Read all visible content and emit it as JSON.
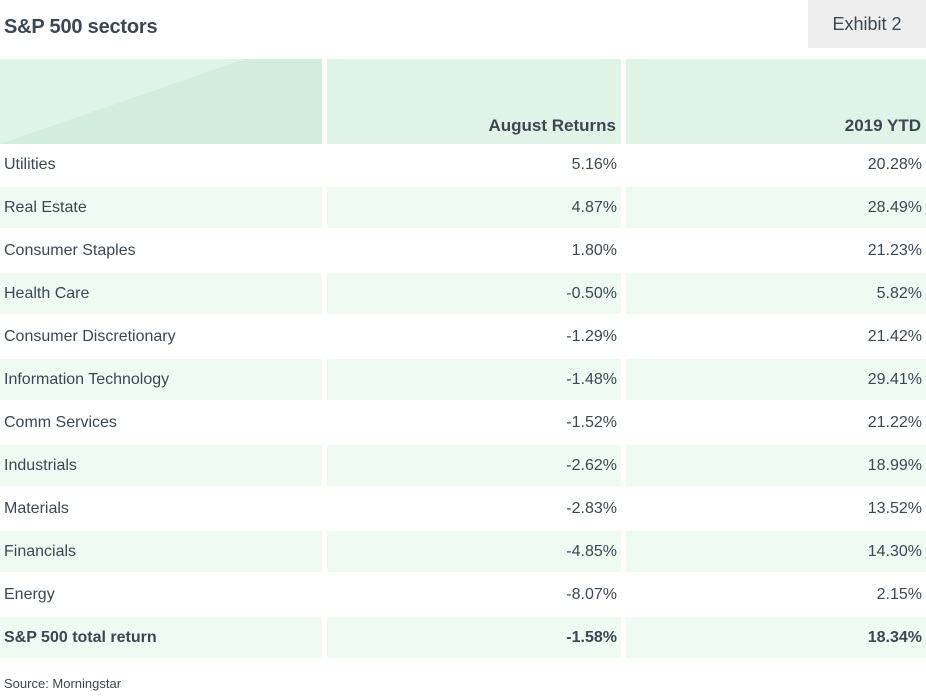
{
  "title": "S&P 500 sectors",
  "exhibit_label": "Exhibit 2",
  "source": "Source: Morningstar",
  "colors": {
    "header_bg": "#dff3e6",
    "row_shade": "#effaf3",
    "text": "#3b4752",
    "exhibit_bg": "#ededed"
  },
  "chart_data": {
    "type": "table",
    "title": "S&P 500 sectors",
    "columns": [
      "",
      "August Returns",
      "2019 YTD"
    ],
    "rows": [
      {
        "sector": "Utilities",
        "august": "5.16%",
        "ytd": "20.28%"
      },
      {
        "sector": "Real Estate",
        "august": "4.87%",
        "ytd": "28.49%"
      },
      {
        "sector": "Consumer Staples",
        "august": "1.80%",
        "ytd": "21.23%"
      },
      {
        "sector": "Health Care",
        "august": "-0.50%",
        "ytd": "5.82%"
      },
      {
        "sector": "Consumer Discretionary",
        "august": "-1.29%",
        "ytd": "21.42%"
      },
      {
        "sector": "Information Technology",
        "august": "-1.48%",
        "ytd": "29.41%"
      },
      {
        "sector": "Comm Services",
        "august": "-1.52%",
        "ytd": "21.22%"
      },
      {
        "sector": "Industrials",
        "august": "-2.62%",
        "ytd": "18.99%"
      },
      {
        "sector": "Materials",
        "august": "-2.83%",
        "ytd": "13.52%"
      },
      {
        "sector": "Financials",
        "august": "-4.85%",
        "ytd": "14.30%"
      },
      {
        "sector": "Energy",
        "august": "-8.07%",
        "ytd": "2.15%"
      },
      {
        "sector": "S&P 500 total return",
        "august": "-1.58%",
        "ytd": "18.34%"
      }
    ]
  }
}
